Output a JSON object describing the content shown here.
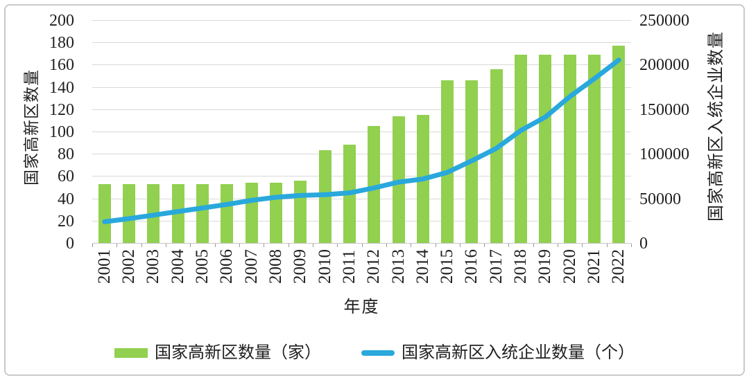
{
  "figure": {
    "background": "#ffffff",
    "border_color": "#c9c9c9"
  },
  "chart_data": {
    "type": "combo-bar-line",
    "categories": [
      "2001",
      "2002",
      "2003",
      "2004",
      "2005",
      "2006",
      "2007",
      "2008",
      "2009",
      "2010",
      "2011",
      "2012",
      "2013",
      "2014",
      "2015",
      "2016",
      "2017",
      "2018",
      "2019",
      "2020",
      "2021",
      "2022"
    ],
    "series": [
      {
        "name": "国家高新区数量（家）",
        "type": "bar",
        "axis": "left",
        "color": "#92D050",
        "values": [
          53,
          53,
          53,
          53,
          53,
          53,
          54,
          54,
          56,
          83,
          88,
          105,
          114,
          115,
          146,
          146,
          156,
          169,
          169,
          169,
          169,
          177
        ]
      },
      {
        "name": "国家高新区入统企业数量（个）",
        "type": "line",
        "axis": "right",
        "color": "#29A8DC",
        "values": [
          24500,
          28000,
          32000,
          36000,
          40000,
          44000,
          48500,
          52000,
          54000,
          55000,
          57000,
          62500,
          69000,
          72500,
          80000,
          93000,
          107000,
          127000,
          142000,
          165000,
          185000,
          206000
        ]
      }
    ],
    "left_axis": {
      "title": "国家高新区数量",
      "min": 0,
      "max": 200,
      "step": 20
    },
    "right_axis": {
      "title": "国家高新区入统企业数量",
      "min": 0,
      "max": 250000,
      "step": 50000
    },
    "xlabel": "年度",
    "grid": true,
    "legend_position": "bottom",
    "gridline_color": "#d9d9d9"
  }
}
